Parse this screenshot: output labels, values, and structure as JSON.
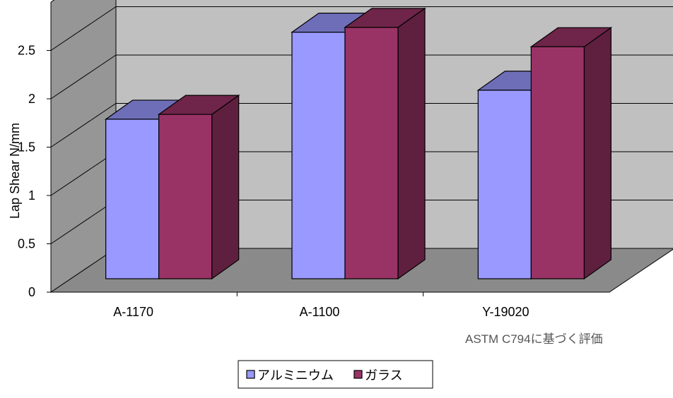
{
  "chart_data": {
    "type": "bar",
    "title": "",
    "xlabel": "",
    "ylabel": "Lap Shear N/mm",
    "categories": [
      "A-1170",
      "A-1100",
      "Y-19020"
    ],
    "series": [
      {
        "name": "アルミニウム",
        "values": [
          1.65,
          2.55,
          1.95
        ],
        "color": "#9999ff"
      },
      {
        "name": "ガラス",
        "values": [
          1.7,
          2.6,
          2.4
        ],
        "color": "#993366"
      }
    ],
    "yticks": [
      "0",
      "0.5",
      "1",
      "1.5",
      "2",
      "2.5"
    ],
    "ylim": [
      0,
      3
    ],
    "grid": true,
    "legend": "bottom",
    "annotation": "ASTM C794に基づく評価"
  }
}
